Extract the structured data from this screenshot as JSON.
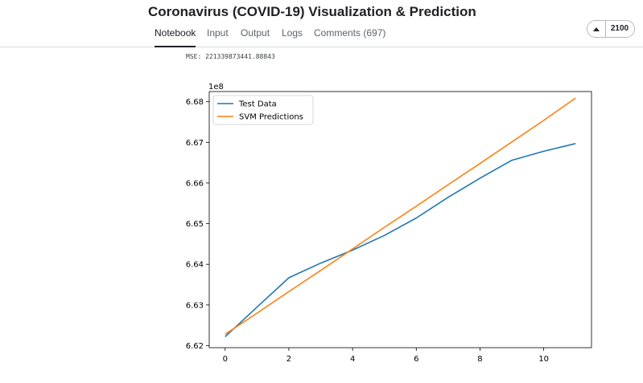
{
  "header": {
    "title": "Coronavirus (COVID-19) Visualization & Prediction",
    "tabs": [
      {
        "label": "Notebook",
        "active": true
      },
      {
        "label": "Input",
        "active": false
      },
      {
        "label": "Output",
        "active": false
      },
      {
        "label": "Logs",
        "active": false
      },
      {
        "label": "Comments (697)",
        "active": false
      }
    ],
    "vote": {
      "icon": "caret-up-icon",
      "count": "2100"
    }
  },
  "output": {
    "mse_text": "MSE: 221339873441.88843"
  },
  "chart_data": {
    "type": "line",
    "offset_label": "1e8",
    "x_ticks": [
      0,
      2,
      4,
      6,
      8,
      10
    ],
    "y_ticks": [
      "6.62",
      "6.63",
      "6.64",
      "6.65",
      "6.66",
      "6.67",
      "6.68"
    ],
    "xlim": [
      -0.5,
      11.5
    ],
    "ylim": [
      6.6195,
      6.6825
    ],
    "grid": false,
    "legend_position": "upper left",
    "series": [
      {
        "name": "Test Data",
        "color": "#1f77b4",
        "x": [
          0,
          1,
          2,
          3,
          4,
          5,
          6,
          7,
          8,
          9,
          10,
          11
        ],
        "y": [
          6.6222,
          6.6295,
          6.6367,
          6.6403,
          6.6435,
          6.6471,
          6.6514,
          6.6565,
          6.6612,
          6.6656,
          6.6678,
          6.6697
        ]
      },
      {
        "name": "SVM Predictions",
        "color": "#ff7f0e",
        "x": [
          0,
          1,
          2,
          3,
          4,
          5,
          6,
          7,
          8,
          9,
          10,
          11
        ],
        "y": [
          6.6228,
          6.628,
          6.6333,
          6.6385,
          6.6438,
          6.6491,
          6.6543,
          6.6596,
          6.6648,
          6.6701,
          6.6754,
          6.6809
        ]
      }
    ]
  }
}
